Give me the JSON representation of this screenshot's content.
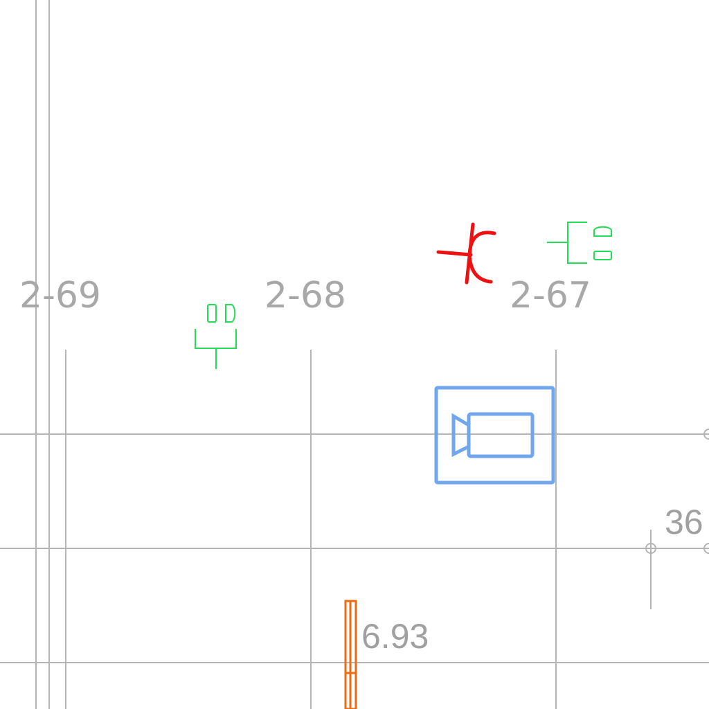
{
  "axes": [
    {
      "id": "2-69",
      "label": "2-69"
    },
    {
      "id": "2-68",
      "label": "2-68"
    },
    {
      "id": "2-67",
      "label": "2-67"
    }
  ],
  "dimensions": {
    "right_value": "36",
    "bottom_value": "6.93"
  },
  "symbols": {
    "outlet_left": "electrical-outlet-icon",
    "outlet_right": "electrical-outlet-icon",
    "junction": "junction-symbol-icon",
    "camera": "video-camera-icon",
    "pipe": "orange-pipe-element"
  },
  "colors": {
    "grid": "#b4b4b4",
    "label": "#a8a8a8",
    "outlet": "#22dd55",
    "junction": "#ee1111",
    "camera": "#6fa6ec",
    "pipe": "#f06a10"
  }
}
